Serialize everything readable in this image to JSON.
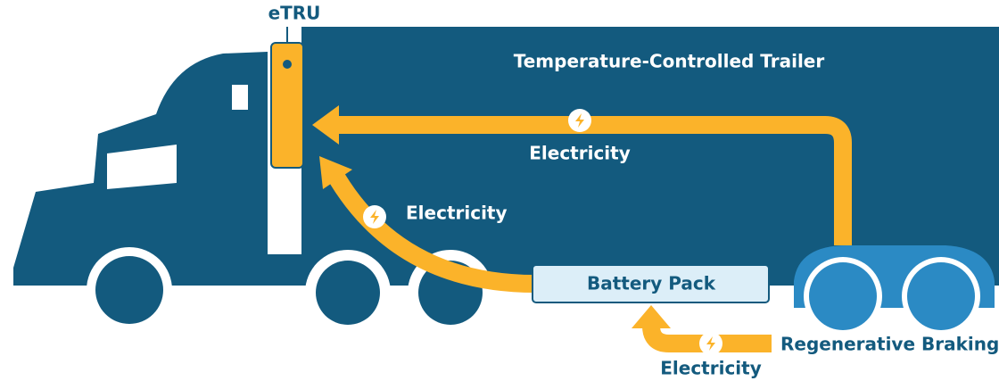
{
  "unit": {
    "label": "eTRU"
  },
  "trailer": {
    "label": "Temperature-Controlled Trailer"
  },
  "battery": {
    "label": "Battery Pack"
  },
  "source": {
    "label": "Regenerative Braking"
  },
  "flows": [
    {
      "label": "Electricity"
    },
    {
      "label": "Electricity"
    },
    {
      "label": "Electricity"
    }
  ]
}
